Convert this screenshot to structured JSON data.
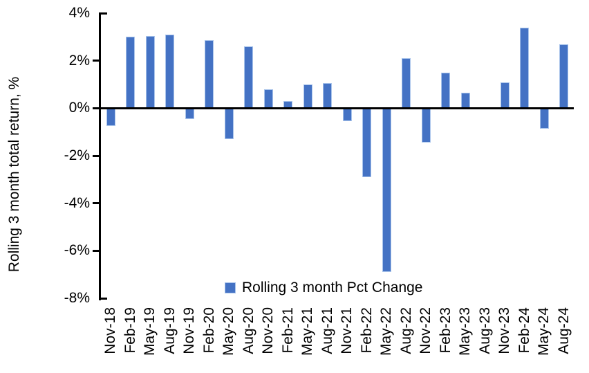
{
  "chart_data": {
    "type": "bar",
    "title": "",
    "xlabel": "",
    "ylabel": "Rolling 3 month total return, %",
    "ylim": [
      -8,
      4
    ],
    "ytick_values": [
      4,
      2,
      0,
      -2,
      -4,
      -6,
      -8
    ],
    "ytick_labels": [
      "4%",
      "2%",
      "0%",
      "-2%",
      "-4%",
      "-6%",
      "-8%"
    ],
    "grid": false,
    "legend_position": "bottom-center-inside",
    "categories": [
      "Nov-18",
      "Feb-19",
      "May-19",
      "Aug-19",
      "Nov-19",
      "Feb-20",
      "May-20",
      "Aug-20",
      "Nov-20",
      "Feb-21",
      "May-21",
      "Aug-21",
      "Nov-21",
      "Feb-22",
      "May-22",
      "Aug-22",
      "Nov-22",
      "Feb-23",
      "May-23",
      "Aug-23",
      "Nov-23",
      "Feb-24",
      "May-24",
      "Aug-24"
    ],
    "series": [
      {
        "name": "Rolling 3 month Pct Change",
        "color": "#4472C4",
        "border_color": "#A9C4EB",
        "values": [
          -0.75,
          3.0,
          3.05,
          3.1,
          -0.45,
          2.85,
          -1.3,
          2.6,
          0.8,
          0.3,
          1.0,
          1.05,
          -0.55,
          -2.9,
          -6.9,
          2.1,
          -1.45,
          1.5,
          0.65,
          0.0,
          1.1,
          3.4,
          -0.85,
          2.7
        ]
      }
    ]
  },
  "colors": {
    "axis": "#000000",
    "text": "#000000",
    "background": "#FFFFFF"
  }
}
